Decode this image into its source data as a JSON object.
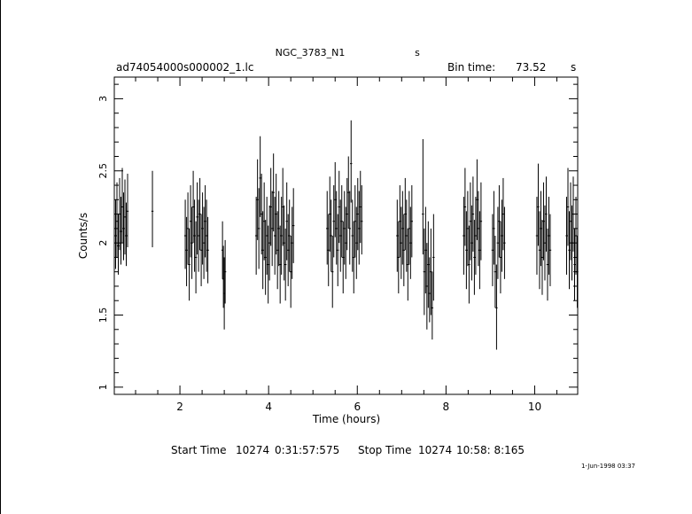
{
  "header": {
    "object": "NGC_3783_N1",
    "object_suffix": "s",
    "file": "ad74054000s000002_1.lc",
    "bin_label": "Bin time:",
    "bin_value": "73.52",
    "bin_unit": "s"
  },
  "footer": {
    "start_label": "Start Time",
    "start_day": "10274",
    "start_time": "0:31:57:575",
    "stop_label": "Stop Time",
    "stop_day": "10274",
    "stop_time": "10:58: 8:165",
    "date": "1-Jun-1998 03:37"
  },
  "chart_data": {
    "type": "scatter",
    "xlabel": "Time (hours)",
    "ylabel": "Counts/s",
    "xlim": [
      0.52,
      10.97
    ],
    "ylim": [
      0.95,
      3.15
    ],
    "xticks": [
      2,
      4,
      6,
      8,
      10
    ],
    "xtick_labels": [
      "2",
      "4",
      "6",
      "8",
      "10"
    ],
    "yticks": [
      1,
      1.5,
      2,
      2.5,
      3
    ],
    "ytick_labels": [
      "1",
      "1.5",
      "2",
      "2.5",
      "3"
    ],
    "grid": false,
    "series": [
      {
        "points": [
          {
            "x": 0.55,
            "y": 2.05,
            "lo": 1.82,
            "hi": 2.3
          },
          {
            "x": 0.58,
            "y": 2.15,
            "lo": 1.9,
            "hi": 2.42
          },
          {
            "x": 0.61,
            "y": 1.98,
            "lo": 1.78,
            "hi": 2.2
          },
          {
            "x": 0.64,
            "y": 2.2,
            "lo": 1.95,
            "hi": 2.45
          },
          {
            "x": 0.67,
            "y": 2.08,
            "lo": 1.85,
            "hi": 2.32
          },
          {
            "x": 0.7,
            "y": 2.25,
            "lo": 2.0,
            "hi": 2.52
          },
          {
            "x": 0.73,
            "y": 2.1,
            "lo": 1.88,
            "hi": 2.35
          },
          {
            "x": 0.76,
            "y": 2.18,
            "lo": 1.92,
            "hi": 2.44
          },
          {
            "x": 0.79,
            "y": 2.05,
            "lo": 1.84,
            "hi": 2.28
          },
          {
            "x": 0.82,
            "y": 2.22,
            "lo": 1.97,
            "hi": 2.48
          },
          {
            "x": 1.38,
            "y": 2.22,
            "lo": 1.97,
            "hi": 2.5
          },
          {
            "x": 2.12,
            "y": 2.05,
            "lo": 1.82,
            "hi": 2.3
          },
          {
            "x": 2.15,
            "y": 1.95,
            "lo": 1.7,
            "hi": 2.18
          },
          {
            "x": 2.18,
            "y": 2.1,
            "lo": 1.85,
            "hi": 2.35
          },
          {
            "x": 2.21,
            "y": 1.85,
            "lo": 1.6,
            "hi": 2.1
          },
          {
            "x": 2.24,
            "y": 2.15,
            "lo": 1.9,
            "hi": 2.4
          },
          {
            "x": 2.27,
            "y": 2.0,
            "lo": 1.75,
            "hi": 2.25
          },
          {
            "x": 2.3,
            "y": 2.25,
            "lo": 2.0,
            "hi": 2.5
          },
          {
            "x": 2.33,
            "y": 2.05,
            "lo": 1.8,
            "hi": 2.3
          },
          {
            "x": 2.36,
            "y": 1.9,
            "lo": 1.65,
            "hi": 2.15
          },
          {
            "x": 2.39,
            "y": 2.18,
            "lo": 1.92,
            "hi": 2.42
          },
          {
            "x": 2.42,
            "y": 2.05,
            "lo": 1.8,
            "hi": 2.3
          },
          {
            "x": 2.45,
            "y": 2.2,
            "lo": 1.95,
            "hi": 2.45
          },
          {
            "x": 2.48,
            "y": 1.95,
            "lo": 1.7,
            "hi": 2.2
          },
          {
            "x": 2.51,
            "y": 2.1,
            "lo": 1.85,
            "hi": 2.35
          },
          {
            "x": 2.54,
            "y": 2.0,
            "lo": 1.75,
            "hi": 2.25
          },
          {
            "x": 2.57,
            "y": 2.15,
            "lo": 1.9,
            "hi": 2.4
          },
          {
            "x": 2.6,
            "y": 2.05,
            "lo": 1.8,
            "hi": 2.3
          },
          {
            "x": 2.63,
            "y": 1.95,
            "lo": 1.72,
            "hi": 2.18
          },
          {
            "x": 2.96,
            "y": 1.95,
            "lo": 1.75,
            "hi": 2.15
          },
          {
            "x": 2.98,
            "y": 1.75,
            "lo": 1.55,
            "hi": 1.98
          },
          {
            "x": 3.0,
            "y": 1.65,
            "lo": 1.4,
            "hi": 1.9
          },
          {
            "x": 3.02,
            "y": 1.8,
            "lo": 1.58,
            "hi": 2.02
          },
          {
            "x": 3.72,
            "y": 2.05,
            "lo": 1.78,
            "hi": 2.32
          },
          {
            "x": 3.75,
            "y": 2.3,
            "lo": 2.02,
            "hi": 2.58
          },
          {
            "x": 3.78,
            "y": 2.1,
            "lo": 1.82,
            "hi": 2.38
          },
          {
            "x": 3.81,
            "y": 2.45,
            "lo": 2.18,
            "hi": 2.74
          },
          {
            "x": 3.84,
            "y": 2.2,
            "lo": 1.92,
            "hi": 2.48
          },
          {
            "x": 3.87,
            "y": 1.95,
            "lo": 1.68,
            "hi": 2.22
          },
          {
            "x": 3.9,
            "y": 2.15,
            "lo": 1.88,
            "hi": 2.42
          },
          {
            "x": 3.93,
            "y": 1.9,
            "lo": 1.64,
            "hi": 2.16
          },
          {
            "x": 3.96,
            "y": 2.05,
            "lo": 1.78,
            "hi": 2.32
          },
          {
            "x": 3.99,
            "y": 1.85,
            "lo": 1.58,
            "hi": 2.12
          },
          {
            "x": 4.02,
            "y": 2.0,
            "lo": 1.74,
            "hi": 2.26
          },
          {
            "x": 4.05,
            "y": 2.25,
            "lo": 1.98,
            "hi": 2.52
          },
          {
            "x": 4.08,
            "y": 2.1,
            "lo": 1.84,
            "hi": 2.36
          },
          {
            "x": 4.11,
            "y": 2.35,
            "lo": 2.08,
            "hi": 2.62
          },
          {
            "x": 4.14,
            "y": 2.05,
            "lo": 1.78,
            "hi": 2.32
          },
          {
            "x": 4.17,
            "y": 2.2,
            "lo": 1.92,
            "hi": 2.48
          },
          {
            "x": 4.2,
            "y": 1.95,
            "lo": 1.68,
            "hi": 2.22
          },
          {
            "x": 4.23,
            "y": 2.1,
            "lo": 1.84,
            "hi": 2.36
          },
          {
            "x": 4.26,
            "y": 1.85,
            "lo": 1.58,
            "hi": 2.12
          },
          {
            "x": 4.29,
            "y": 2.05,
            "lo": 1.78,
            "hi": 2.32
          },
          {
            "x": 4.32,
            "y": 2.25,
            "lo": 1.98,
            "hi": 2.52
          },
          {
            "x": 4.35,
            "y": 2.0,
            "lo": 1.74,
            "hi": 2.26
          },
          {
            "x": 4.38,
            "y": 1.85,
            "lo": 1.6,
            "hi": 2.1
          },
          {
            "x": 4.41,
            "y": 2.15,
            "lo": 1.88,
            "hi": 2.42
          },
          {
            "x": 4.44,
            "y": 1.95,
            "lo": 1.7,
            "hi": 2.2
          },
          {
            "x": 4.47,
            "y": 2.05,
            "lo": 1.8,
            "hi": 2.3
          },
          {
            "x": 4.5,
            "y": 1.8,
            "lo": 1.55,
            "hi": 2.05
          },
          {
            "x": 4.53,
            "y": 2.0,
            "lo": 1.75,
            "hi": 2.25
          },
          {
            "x": 4.56,
            "y": 2.12,
            "lo": 1.86,
            "hi": 2.38
          },
          {
            "x": 5.32,
            "y": 2.1,
            "lo": 1.85,
            "hi": 2.36
          },
          {
            "x": 5.35,
            "y": 1.95,
            "lo": 1.7,
            "hi": 2.2
          },
          {
            "x": 5.38,
            "y": 2.2,
            "lo": 1.94,
            "hi": 2.46
          },
          {
            "x": 5.41,
            "y": 2.05,
            "lo": 1.8,
            "hi": 2.3
          },
          {
            "x": 5.44,
            "y": 1.8,
            "lo": 1.55,
            "hi": 2.05
          },
          {
            "x": 5.47,
            "y": 2.15,
            "lo": 1.9,
            "hi": 2.4
          },
          {
            "x": 5.5,
            "y": 2.3,
            "lo": 2.04,
            "hi": 2.56
          },
          {
            "x": 5.53,
            "y": 2.1,
            "lo": 1.85,
            "hi": 2.36
          },
          {
            "x": 5.56,
            "y": 1.95,
            "lo": 1.7,
            "hi": 2.2
          },
          {
            "x": 5.59,
            "y": 2.25,
            "lo": 2.0,
            "hi": 2.5
          },
          {
            "x": 5.62,
            "y": 2.05,
            "lo": 1.8,
            "hi": 2.3
          },
          {
            "x": 5.65,
            "y": 2.15,
            "lo": 1.9,
            "hi": 2.4
          },
          {
            "x": 5.68,
            "y": 1.9,
            "lo": 1.65,
            "hi": 2.15
          },
          {
            "x": 5.71,
            "y": 2.1,
            "lo": 1.85,
            "hi": 2.36
          },
          {
            "x": 5.74,
            "y": 2.0,
            "lo": 1.75,
            "hi": 2.25
          },
          {
            "x": 5.77,
            "y": 2.2,
            "lo": 1.95,
            "hi": 2.45
          },
          {
            "x": 5.8,
            "y": 2.35,
            "lo": 2.1,
            "hi": 2.6
          },
          {
            "x": 5.83,
            "y": 2.1,
            "lo": 1.85,
            "hi": 2.36
          },
          {
            "x": 5.86,
            "y": 2.55,
            "lo": 2.28,
            "hi": 2.85
          },
          {
            "x": 5.89,
            "y": 2.05,
            "lo": 1.8,
            "hi": 2.3
          },
          {
            "x": 5.92,
            "y": 1.9,
            "lo": 1.65,
            "hi": 2.15
          },
          {
            "x": 5.95,
            "y": 2.15,
            "lo": 1.9,
            "hi": 2.4
          },
          {
            "x": 5.98,
            "y": 2.0,
            "lo": 1.75,
            "hi": 2.25
          },
          {
            "x": 6.01,
            "y": 2.2,
            "lo": 1.95,
            "hi": 2.45
          },
          {
            "x": 6.04,
            "y": 2.1,
            "lo": 1.85,
            "hi": 2.36
          },
          {
            "x": 6.07,
            "y": 2.25,
            "lo": 2.0,
            "hi": 2.5
          },
          {
            "x": 6.1,
            "y": 2.15,
            "lo": 1.92,
            "hi": 2.4
          },
          {
            "x": 6.9,
            "y": 2.05,
            "lo": 1.8,
            "hi": 2.3
          },
          {
            "x": 6.93,
            "y": 1.9,
            "lo": 1.65,
            "hi": 2.15
          },
          {
            "x": 6.96,
            "y": 2.15,
            "lo": 1.9,
            "hi": 2.4
          },
          {
            "x": 6.99,
            "y": 2.0,
            "lo": 1.75,
            "hi": 2.25
          },
          {
            "x": 7.02,
            "y": 2.1,
            "lo": 1.85,
            "hi": 2.36
          },
          {
            "x": 7.05,
            "y": 1.95,
            "lo": 1.7,
            "hi": 2.2
          },
          {
            "x": 7.08,
            "y": 2.2,
            "lo": 1.95,
            "hi": 2.45
          },
          {
            "x": 7.11,
            "y": 2.05,
            "lo": 1.8,
            "hi": 2.3
          },
          {
            "x": 7.14,
            "y": 1.85,
            "lo": 1.6,
            "hi": 2.1
          },
          {
            "x": 7.17,
            "y": 2.1,
            "lo": 1.85,
            "hi": 2.36
          },
          {
            "x": 7.2,
            "y": 2.0,
            "lo": 1.75,
            "hi": 2.25
          },
          {
            "x": 7.23,
            "y": 2.15,
            "lo": 1.9,
            "hi": 2.4
          },
          {
            "x": 7.48,
            "y": 2.2,
            "lo": 1.92,
            "hi": 2.72
          },
          {
            "x": 7.51,
            "y": 1.8,
            "lo": 1.5,
            "hi": 2.1
          },
          {
            "x": 7.54,
            "y": 1.95,
            "lo": 1.65,
            "hi": 2.25
          },
          {
            "x": 7.57,
            "y": 1.7,
            "lo": 1.4,
            "hi": 2.0
          },
          {
            "x": 7.6,
            "y": 1.85,
            "lo": 1.55,
            "hi": 2.15
          },
          {
            "x": 7.63,
            "y": 1.65,
            "lo": 1.45,
            "hi": 1.9
          },
          {
            "x": 7.66,
            "y": 1.8,
            "lo": 1.5,
            "hi": 2.1
          },
          {
            "x": 7.69,
            "y": 1.55,
            "lo": 1.33,
            "hi": 1.8
          },
          {
            "x": 7.72,
            "y": 1.9,
            "lo": 1.6,
            "hi": 2.2
          },
          {
            "x": 8.4,
            "y": 2.05,
            "lo": 1.78,
            "hi": 2.32
          },
          {
            "x": 8.43,
            "y": 2.25,
            "lo": 1.98,
            "hi": 2.52
          },
          {
            "x": 8.46,
            "y": 1.95,
            "lo": 1.68,
            "hi": 2.22
          },
          {
            "x": 8.49,
            "y": 2.1,
            "lo": 1.84,
            "hi": 2.36
          },
          {
            "x": 8.52,
            "y": 1.85,
            "lo": 1.58,
            "hi": 2.12
          },
          {
            "x": 8.55,
            "y": 2.15,
            "lo": 1.88,
            "hi": 2.42
          },
          {
            "x": 8.58,
            "y": 2.0,
            "lo": 1.74,
            "hi": 2.26
          },
          {
            "x": 8.61,
            "y": 2.2,
            "lo": 1.94,
            "hi": 2.46
          },
          {
            "x": 8.64,
            "y": 1.9,
            "lo": 1.64,
            "hi": 2.16
          },
          {
            "x": 8.67,
            "y": 2.05,
            "lo": 1.78,
            "hi": 2.32
          },
          {
            "x": 8.7,
            "y": 2.3,
            "lo": 2.02,
            "hi": 2.58
          },
          {
            "x": 8.73,
            "y": 2.1,
            "lo": 1.84,
            "hi": 2.36
          },
          {
            "x": 8.76,
            "y": 1.95,
            "lo": 1.68,
            "hi": 2.22
          },
          {
            "x": 8.79,
            "y": 2.15,
            "lo": 1.88,
            "hi": 2.42
          },
          {
            "x": 9.05,
            "y": 1.95,
            "lo": 1.7,
            "hi": 2.2
          },
          {
            "x": 9.08,
            "y": 2.1,
            "lo": 1.85,
            "hi": 2.36
          },
          {
            "x": 9.11,
            "y": 1.8,
            "lo": 1.55,
            "hi": 2.05
          },
          {
            "x": 9.14,
            "y": 1.55,
            "lo": 1.26,
            "hi": 1.85
          },
          {
            "x": 9.17,
            "y": 2.0,
            "lo": 1.75,
            "hi": 2.25
          },
          {
            "x": 9.2,
            "y": 2.15,
            "lo": 1.9,
            "hi": 2.4
          },
          {
            "x": 9.23,
            "y": 1.9,
            "lo": 1.65,
            "hi": 2.15
          },
          {
            "x": 9.26,
            "y": 2.05,
            "lo": 1.8,
            "hi": 2.3
          },
          {
            "x": 9.29,
            "y": 2.2,
            "lo": 1.95,
            "hi": 2.45
          },
          {
            "x": 9.32,
            "y": 2.0,
            "lo": 1.75,
            "hi": 2.25
          },
          {
            "x": 10.05,
            "y": 2.05,
            "lo": 1.78,
            "hi": 2.32
          },
          {
            "x": 10.08,
            "y": 2.25,
            "lo": 1.98,
            "hi": 2.55
          },
          {
            "x": 10.11,
            "y": 1.95,
            "lo": 1.68,
            "hi": 2.22
          },
          {
            "x": 10.14,
            "y": 2.1,
            "lo": 1.84,
            "hi": 2.36
          },
          {
            "x": 10.17,
            "y": 1.9,
            "lo": 1.64,
            "hi": 2.16
          },
          {
            "x": 10.2,
            "y": 2.15,
            "lo": 1.88,
            "hi": 2.42
          },
          {
            "x": 10.23,
            "y": 2.0,
            "lo": 1.74,
            "hi": 2.26
          },
          {
            "x": 10.26,
            "y": 2.2,
            "lo": 1.94,
            "hi": 2.46
          },
          {
            "x": 10.29,
            "y": 1.85,
            "lo": 1.6,
            "hi": 2.1
          },
          {
            "x": 10.32,
            "y": 2.05,
            "lo": 1.78,
            "hi": 2.32
          },
          {
            "x": 10.35,
            "y": 1.95,
            "lo": 1.7,
            "hi": 2.2
          },
          {
            "x": 10.72,
            "y": 2.05,
            "lo": 1.78,
            "hi": 2.32
          },
          {
            "x": 10.75,
            "y": 2.25,
            "lo": 1.98,
            "hi": 2.52
          },
          {
            "x": 10.78,
            "y": 1.95,
            "lo": 1.68,
            "hi": 2.22
          },
          {
            "x": 10.81,
            "y": 2.15,
            "lo": 1.88,
            "hi": 2.42
          },
          {
            "x": 10.84,
            "y": 2.0,
            "lo": 1.74,
            "hi": 2.26
          },
          {
            "x": 10.87,
            "y": 2.2,
            "lo": 1.94,
            "hi": 2.46
          },
          {
            "x": 10.9,
            "y": 1.85,
            "lo": 1.6,
            "hi": 2.1
          },
          {
            "x": 10.93,
            "y": 2.05,
            "lo": 1.78,
            "hi": 2.32
          },
          {
            "x": 10.96,
            "y": 1.8,
            "lo": 1.55,
            "hi": 2.05
          }
        ]
      }
    ]
  }
}
